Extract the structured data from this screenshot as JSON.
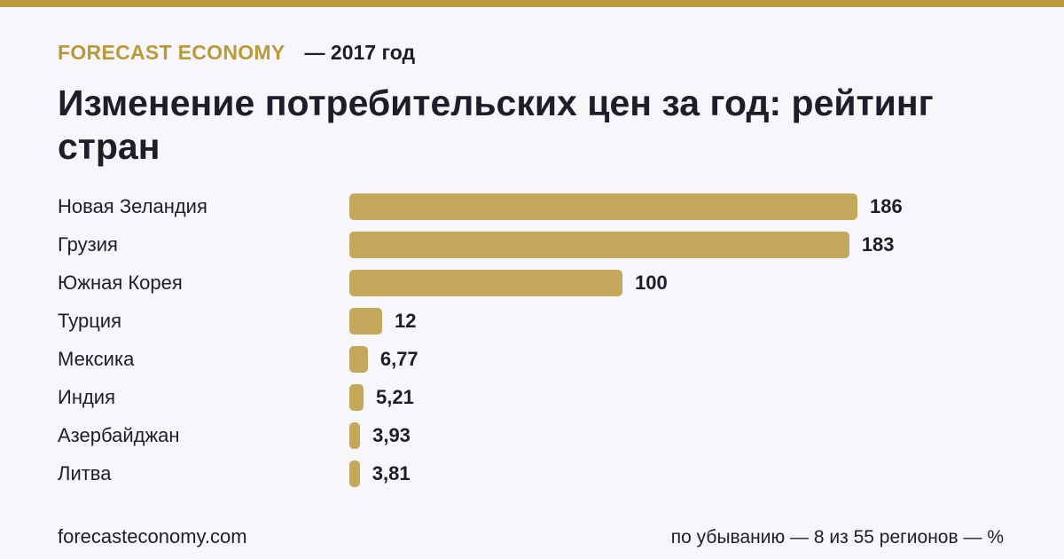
{
  "header": {
    "brand": "FORECAST ECONOMY",
    "year": "— 2017 год",
    "title": "Изменение потребительских цен за год: рейтинг стран"
  },
  "chart_data": {
    "type": "bar",
    "orientation": "horizontal",
    "categories": [
      "Новая Зеландия",
      "Грузия",
      "Южная Корея",
      "Турция",
      "Мексика",
      "Индия",
      "Азербайджан",
      "Литва"
    ],
    "values": [
      186,
      183,
      100,
      12,
      6.77,
      5.21,
      3.93,
      3.81
    ],
    "value_labels": [
      "186",
      "183",
      "100",
      "12",
      "6,77",
      "5,21",
      "3,93",
      "3,81"
    ],
    "xlim": [
      0,
      186
    ],
    "grid": false,
    "bar_color": "#c4a75a"
  },
  "footer": {
    "site": "forecasteconomy.com",
    "note": "по убыванию — 8 из 55 регионов — %"
  },
  "colors": {
    "accent": "#b99a3a",
    "background": "#f7f7fb",
    "text": "#1d1d2c"
  }
}
